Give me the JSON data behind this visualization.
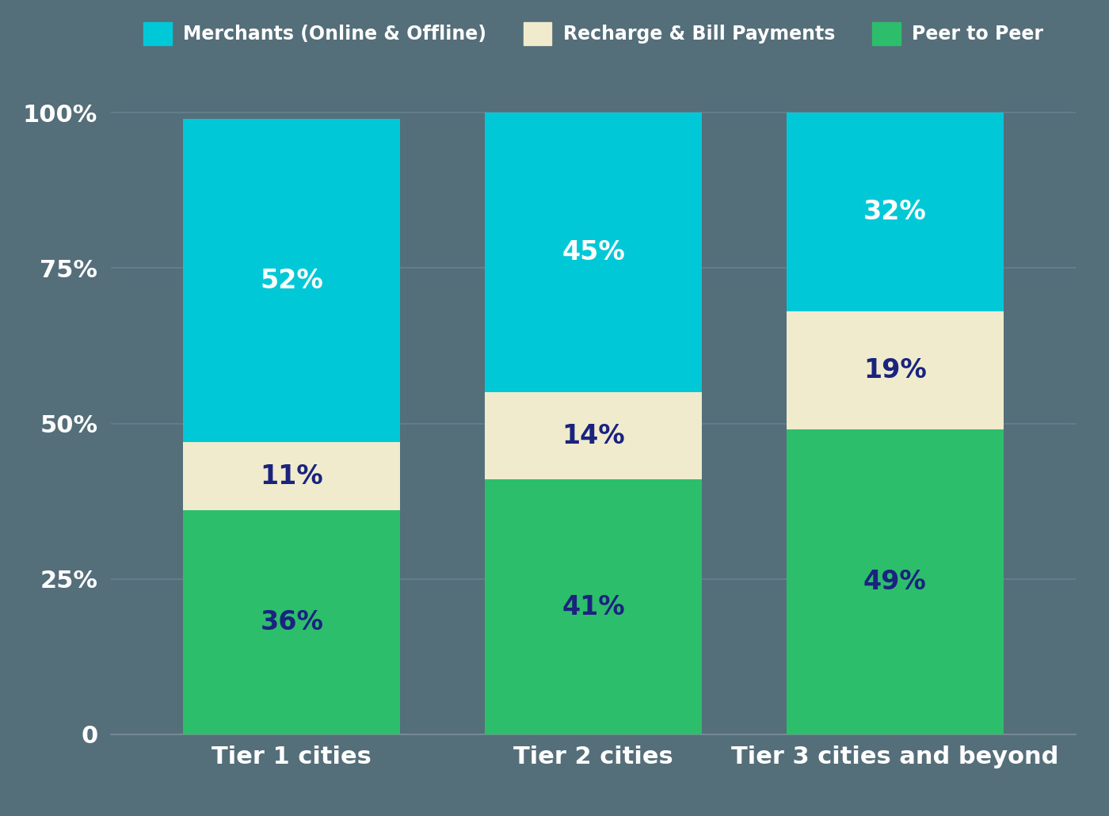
{
  "categories": [
    "Tier 1 cities",
    "Tier 2 cities",
    "Tier 3 cities and beyond"
  ],
  "peer_to_peer": [
    36,
    41,
    49
  ],
  "recharge_bill": [
    11,
    14,
    19
  ],
  "merchants": [
    52,
    45,
    32
  ],
  "colors": {
    "merchants": "#00c8d7",
    "recharge_bill": "#f0ebcc",
    "peer_to_peer": "#2dbe6c"
  },
  "legend_labels": [
    "Merchants (Online & Offline)",
    "Recharge & Bill Payments",
    "Peer to Peer"
  ],
  "legend_colors": [
    "#00c8d7",
    "#f0ebcc",
    "#2dbe6c"
  ],
  "background_color": "#546e7a",
  "grid_color": "#5f7d8a",
  "text_color_white": "#ffffff",
  "text_color_dark": "#1a237e",
  "bar_width": 0.72,
  "yticks": [
    0,
    25,
    50,
    75,
    100
  ],
  "ytick_labels": [
    "0",
    "25%",
    "50%",
    "75%",
    "100%"
  ],
  "tick_fontsize": 22,
  "legend_fontsize": 17,
  "value_fontsize": 24
}
